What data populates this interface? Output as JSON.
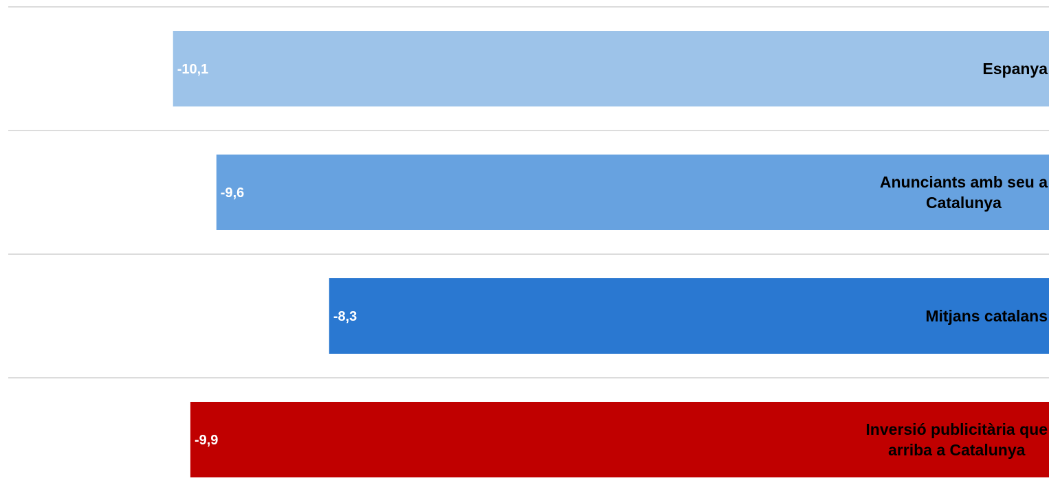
{
  "chart_data": {
    "type": "bar",
    "orientation": "horizontal",
    "categories": [
      [
        "Espanya"
      ],
      [
        "Anunciants amb seu a",
        "Catalunya"
      ],
      [
        "Mitjans catalans"
      ],
      [
        "Inversió publicitària que",
        "arriba a Catalunya"
      ]
    ],
    "values": [
      -10.1,
      -9.6,
      -8.3,
      -9.9
    ],
    "value_labels": [
      "-10,1",
      "-9,6",
      "-8,3",
      "-9,9"
    ],
    "colors": [
      "#9dc3e9",
      "#67a2e0",
      "#2a78d1",
      "#c00000"
    ],
    "xlim": [
      -12,
      0
    ],
    "grid": true,
    "legend": "none"
  }
}
